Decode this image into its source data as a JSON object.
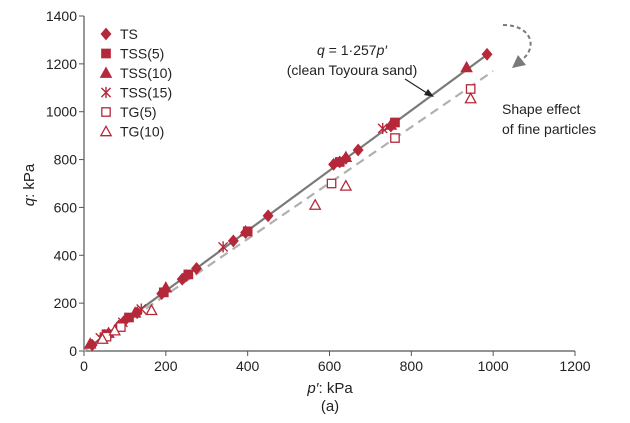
{
  "chart_data": {
    "type": "scatter",
    "panel_label": "(a)",
    "xlabel_var": "p′",
    "xlabel_unit": ": kPa",
    "ylabel_var": "q",
    "ylabel_unit": ": kPa",
    "xlim": [
      0,
      1200
    ],
    "ylim": [
      0,
      1400
    ],
    "xticks": [
      0,
      200,
      400,
      600,
      800,
      1000,
      1200
    ],
    "yticks": [
      0,
      200,
      400,
      600,
      800,
      1000,
      1200,
      1400
    ],
    "grid": false,
    "legend_position": "top-left",
    "colors": {
      "series": "#b5283a",
      "line_solid": "#7a7a7a",
      "line_dashed": "#b0b0b0",
      "arrow": "#7a7a7a"
    },
    "series": [
      {
        "name": "TS",
        "marker": "diamond",
        "filled": true,
        "points": [
          [
            20,
            25
          ],
          [
            50,
            65
          ],
          [
            85,
            105
          ],
          [
            100,
            128
          ],
          [
            130,
            160
          ],
          [
            190,
            240
          ],
          [
            240,
            300
          ],
          [
            250,
            315
          ],
          [
            275,
            345
          ],
          [
            365,
            460
          ],
          [
            395,
            495
          ],
          [
            450,
            565
          ],
          [
            610,
            780
          ],
          [
            625,
            790
          ],
          [
            640,
            805
          ],
          [
            670,
            840
          ],
          [
            750,
            940
          ],
          [
            985,
            1240
          ]
        ]
      },
      {
        "name": "TSS(5)",
        "marker": "square",
        "filled": true,
        "points": [
          [
            55,
            70
          ],
          [
            110,
            140
          ],
          [
            195,
            245
          ],
          [
            255,
            320
          ],
          [
            400,
            500
          ],
          [
            625,
            790
          ],
          [
            760,
            955
          ]
        ]
      },
      {
        "name": "TSS(10)",
        "marker": "triangle",
        "filled": true,
        "points": [
          [
            15,
            30
          ],
          [
            60,
            75
          ],
          [
            125,
            160
          ],
          [
            200,
            265
          ],
          [
            395,
            500
          ],
          [
            640,
            810
          ],
          [
            750,
            945
          ],
          [
            935,
            1185
          ]
        ]
      },
      {
        "name": "TSS(15)",
        "marker": "star",
        "filled": false,
        "points": [
          [
            40,
            55
          ],
          [
            95,
            120
          ],
          [
            140,
            175
          ],
          [
            340,
            435
          ],
          [
            730,
            930
          ]
        ]
      },
      {
        "name": "TG(5)",
        "marker": "square",
        "filled": false,
        "points": [
          [
            55,
            60
          ],
          [
            90,
            100
          ],
          [
            605,
            700
          ],
          [
            760,
            890
          ],
          [
            945,
            1095
          ]
        ]
      },
      {
        "name": "TG(10)",
        "marker": "triangle",
        "filled": false,
        "points": [
          [
            45,
            50
          ],
          [
            75,
            85
          ],
          [
            165,
            170
          ],
          [
            565,
            610
          ],
          [
            640,
            690
          ],
          [
            945,
            1055
          ]
        ]
      }
    ],
    "fit_lines": [
      {
        "label_var": "q",
        "label_expr": " = 1·257",
        "label_var2": "p′",
        "label_note": "(clean Toyoura sand)",
        "slope": 1.257,
        "x_range": [
          0,
          985
        ],
        "style": "solid"
      },
      {
        "slope": 1.17,
        "x_range": [
          0,
          1000
        ],
        "style": "dashed"
      }
    ],
    "annotation": {
      "line1": "Shape effect",
      "line2": "of fine particles"
    }
  }
}
